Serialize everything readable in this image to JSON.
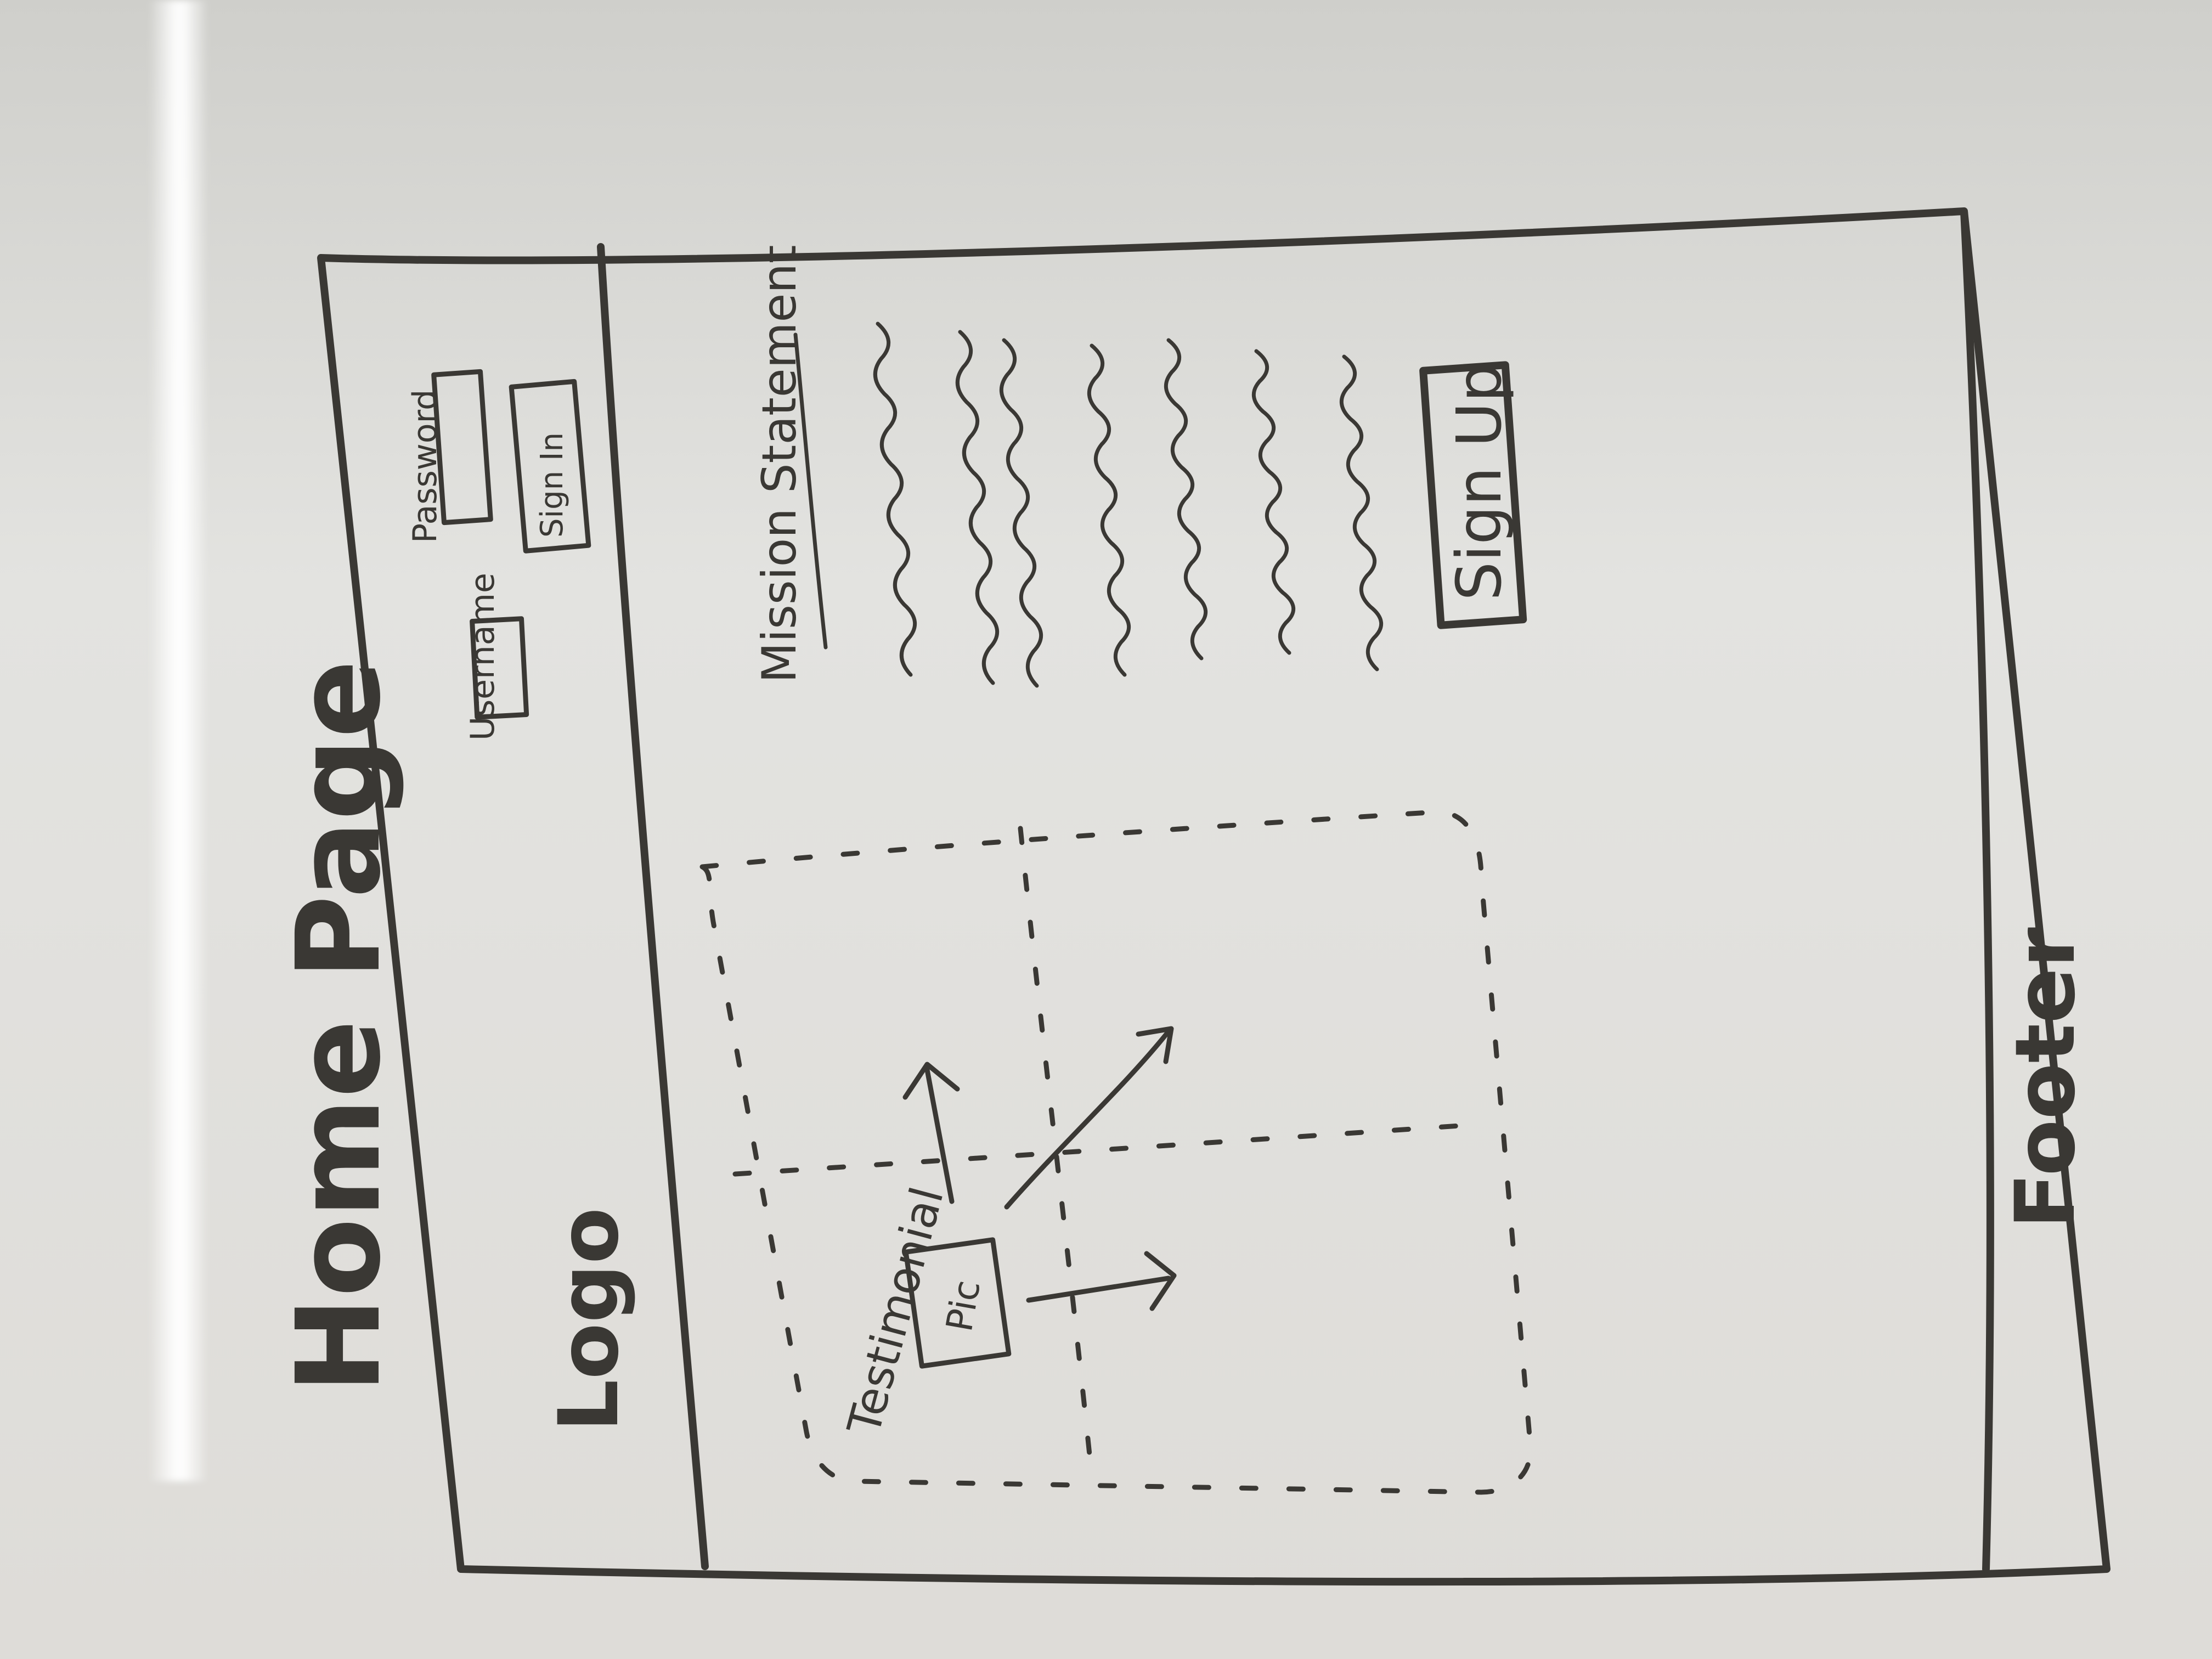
{
  "sketch": {
    "title": "Home Page",
    "header": {
      "logo": "Logo",
      "username_label": "Username",
      "password_label": "Password",
      "signin_button": "Sign In"
    },
    "main": {
      "mission_heading": "Mission Statement",
      "signup_button": "Sign Up",
      "testimonial_label": "Testimonial",
      "pic_label": "Pic"
    },
    "footer": {
      "label": "Footer"
    }
  },
  "colors": {
    "ink": "#3a3834",
    "board": "#e0dfdb"
  }
}
